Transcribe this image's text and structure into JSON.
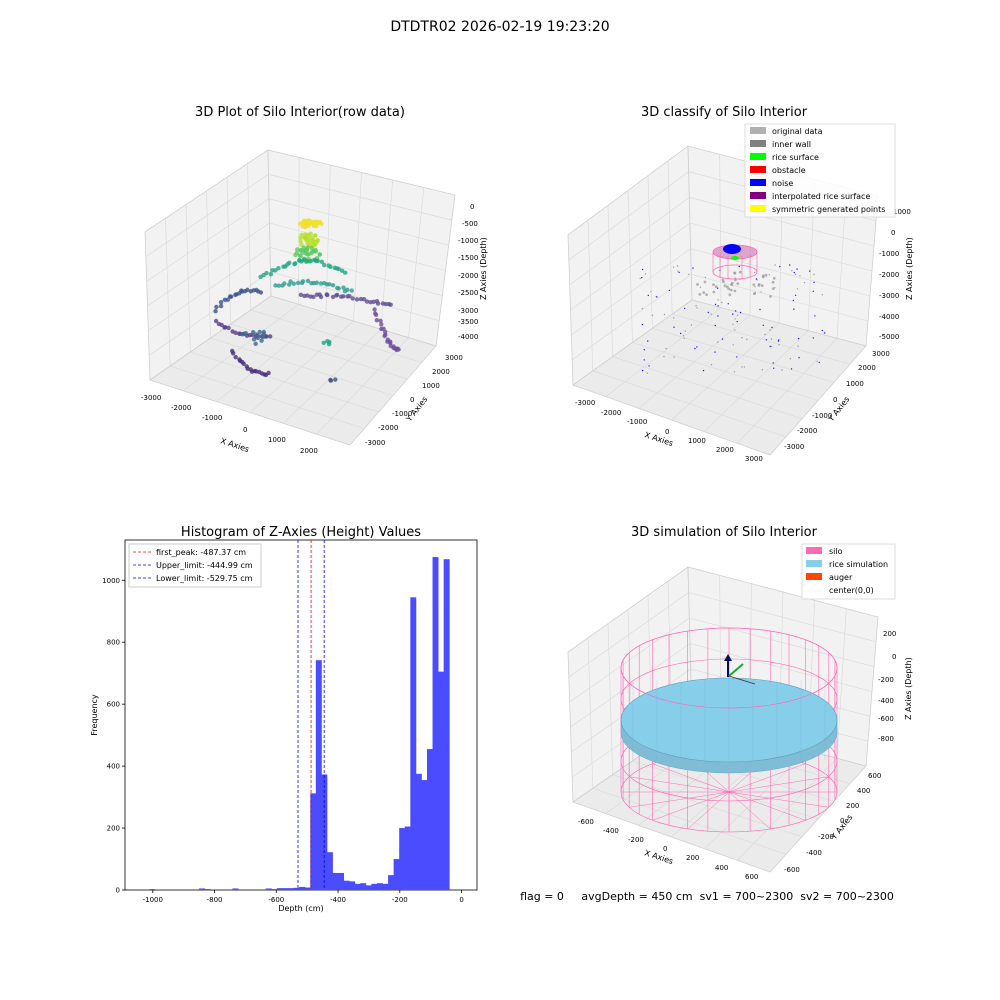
{
  "page_title": "DTDTR02 2026-02-19 19:23:20",
  "footer_status": "flag = 0     avgDepth = 450 cm  sv1 = 700~2300  sv2 = 700~2300",
  "chart_data": [
    {
      "type": "scatter",
      "projection": "3d",
      "title": "3D Plot of Silo Interior(row data)",
      "xlabel": "X Axies",
      "ylabel": "Y Axies",
      "zlabel": "Z Axies (Depth)",
      "x_ticks": [
        "-3000",
        "-2000",
        "-1000",
        "0",
        "1000",
        "2000"
      ],
      "y_ticks": [
        "-3000",
        "-2000",
        "-1000",
        "0",
        "1000",
        "2000",
        "3000"
      ],
      "z_ticks": [
        "0",
        "-500",
        "-1000",
        "-1500",
        "-2000",
        "-2500",
        "-3000",
        "-3500",
        "-4000"
      ],
      "colormap": "viridis (by depth)",
      "grid": true
    },
    {
      "type": "scatter",
      "projection": "3d",
      "title": "3D classify of Silo Interior",
      "xlabel": "X Axies",
      "ylabel": "Y Axies",
      "zlabel": "Z Axies (Depth)",
      "x_ticks": [
        "-3000",
        "-2000",
        "-1000",
        "0",
        "1000",
        "2000",
        "3000"
      ],
      "y_ticks": [
        "-3000",
        "-2000",
        "-1000",
        "0",
        "1000",
        "2000",
        "3000"
      ],
      "z_ticks": [
        "1000",
        "0",
        "-1000",
        "-2000",
        "-3000",
        "-4000",
        "-5000"
      ],
      "legend": [
        {
          "label": "original data",
          "color": "#b0b0b0"
        },
        {
          "label": "inner wall",
          "color": "#808080"
        },
        {
          "label": "rice surface",
          "color": "#00ff00"
        },
        {
          "label": "obstacle",
          "color": "#ff0000"
        },
        {
          "label": "noise",
          "color": "#0000ff"
        },
        {
          "label": "interpolated rice surface",
          "color": "#800080"
        },
        {
          "label": "symmetric generated points",
          "color": "#ffff00"
        }
      ],
      "legend_position": "top-right",
      "grid": true
    },
    {
      "type": "bar",
      "title": "Histogram of Z-Axies (Height) Values",
      "xlabel": "Depth (cm)",
      "ylabel": "Frequency",
      "xlim": [
        -1090,
        50
      ],
      "ylim": [
        0,
        1130
      ],
      "x_ticks": [
        "-1000",
        "-800",
        "-600",
        "-400",
        "-200",
        "0"
      ],
      "y_ticks": [
        "0",
        "200",
        "400",
        "600",
        "800",
        "1000"
      ],
      "bin_width": 18,
      "bins": [
        [
          -1048,
          2
        ],
        [
          -1030,
          2
        ],
        [
          -1012,
          3
        ],
        [
          -994,
          2
        ],
        [
          -976,
          2
        ],
        [
          -958,
          2
        ],
        [
          -940,
          2
        ],
        [
          -922,
          2
        ],
        [
          -904,
          2
        ],
        [
          -886,
          2
        ],
        [
          -868,
          2
        ],
        [
          -850,
          5
        ],
        [
          -832,
          3
        ],
        [
          -814,
          2
        ],
        [
          -796,
          2
        ],
        [
          -778,
          0
        ],
        [
          -760,
          0
        ],
        [
          -742,
          5
        ],
        [
          -724,
          2
        ],
        [
          -706,
          2
        ],
        [
          -688,
          2
        ],
        [
          -670,
          2
        ],
        [
          -652,
          2
        ],
        [
          -634,
          5
        ],
        [
          -616,
          3
        ],
        [
          -598,
          6
        ],
        [
          -580,
          6
        ],
        [
          -562,
          6
        ],
        [
          -544,
          7
        ],
        [
          -526,
          10
        ],
        [
          -508,
          8
        ],
        [
          -490,
          312
        ],
        [
          -472,
          742
        ],
        [
          -454,
          373
        ],
        [
          -436,
          122
        ],
        [
          -418,
          55
        ],
        [
          -400,
          55
        ],
        [
          -382,
          30
        ],
        [
          -364,
          28
        ],
        [
          -346,
          20
        ],
        [
          -328,
          22
        ],
        [
          -310,
          15
        ],
        [
          -292,
          20
        ],
        [
          -274,
          22
        ],
        [
          -256,
          20
        ],
        [
          -238,
          48
        ],
        [
          -220,
          100
        ],
        [
          -202,
          200
        ],
        [
          -184,
          205
        ],
        [
          -166,
          945
        ],
        [
          -148,
          375
        ],
        [
          -130,
          355
        ],
        [
          -112,
          455
        ],
        [
          -94,
          1075
        ],
        [
          -76,
          705
        ],
        [
          -58,
          1068
        ],
        [
          -40,
          0
        ]
      ],
      "vlines": [
        {
          "label": "first_peak: -487.37 cm",
          "x": -487.37,
          "color": "#ff0000",
          "style": "dashed"
        },
        {
          "label": "Upper_limit: -444.99 cm",
          "x": -444.99,
          "color": "#0000ff",
          "style": "dashed"
        },
        {
          "label": "Lower_limit: -529.75 cm",
          "x": -529.75,
          "color": "#0000ff",
          "style": "dashed"
        }
      ],
      "legend_position": "top-left",
      "bar_color": "#4c4cff"
    },
    {
      "type": "surface",
      "projection": "3d",
      "title": "3D simulation of Silo Interior",
      "xlabel": "X Axies",
      "ylabel": "Y Axies",
      "zlabel": "Z Axies (Depth)",
      "x_ticks": [
        "-600",
        "-400",
        "-200",
        "0",
        "200",
        "400",
        "600"
      ],
      "y_ticks": [
        "-600",
        "-400",
        "-200",
        "0",
        "200",
        "400",
        "600"
      ],
      "z_ticks": [
        "200",
        "0",
        "-200",
        "-400",
        "-600",
        "-800"
      ],
      "legend": [
        {
          "label": "silo",
          "color": "#ff69b4"
        },
        {
          "label": "rice simulation",
          "color": "#87ceeb"
        },
        {
          "label": "auger",
          "color": "#ff4500"
        },
        {
          "label": "center(0,0)",
          "color": ""
        }
      ],
      "legend_position": "top-right",
      "grid": true
    }
  ]
}
